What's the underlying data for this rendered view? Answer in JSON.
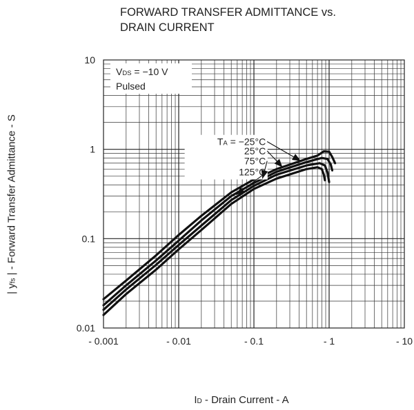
{
  "chart_data": {
    "type": "line",
    "title_line1": "FORWARD TRANSFER ADMITTANCE vs.",
    "title_line2": "DRAIN CURRENT",
    "ylabel": "| yfs | - Forward Transfer Admittance - S",
    "ylabel_parts": {
      "pre": "| y",
      "sub": "fs",
      "post": " | - Forward Transfer Admittance - S"
    },
    "xlabel": "ID - Drain Current - A",
    "xlabel_parts": {
      "pre": "I",
      "sub": "D",
      "post": " - Drain Current - A"
    },
    "x_scale": "log",
    "y_scale": "log",
    "xlim": [
      -0.001,
      -10
    ],
    "ylim": [
      0.01,
      10
    ],
    "x_ticks": [
      {
        "value": -0.001,
        "label": "- 0.001"
      },
      {
        "value": -0.01,
        "label": "- 0.01"
      },
      {
        "value": -0.1,
        "label": "- 0.1"
      },
      {
        "value": -1,
        "label": "- 1"
      },
      {
        "value": -10,
        "label": "- 10"
      }
    ],
    "y_ticks": [
      {
        "value": 0.01,
        "label": "0.01"
      },
      {
        "value": 0.1,
        "label": "0.1"
      },
      {
        "value": 1,
        "label": "1"
      },
      {
        "value": 10,
        "label": "10"
      }
    ],
    "grid": true,
    "conditions": {
      "vds": {
        "pre": "V",
        "sub": "DS",
        "post": " = −10 V"
      },
      "pulsed": "Pulsed"
    },
    "series": [
      {
        "name": "TA = −25°C",
        "label_pre": "T",
        "label_sub": "A",
        "label_post": " = −25°C",
        "label_anchor": [
          -0.15,
          1.22
        ],
        "arrow_to": [
          -0.42,
          0.74
        ],
        "points": [
          [
            -0.001,
            0.021
          ],
          [
            -0.002,
            0.034
          ],
          [
            -0.005,
            0.065
          ],
          [
            -0.01,
            0.11
          ],
          [
            -0.02,
            0.18
          ],
          [
            -0.05,
            0.33
          ],
          [
            -0.1,
            0.46
          ],
          [
            -0.2,
            0.6
          ],
          [
            -0.5,
            0.78
          ],
          [
            -0.7,
            0.85
          ],
          [
            -0.85,
            0.95
          ],
          [
            -1.0,
            0.94
          ],
          [
            -1.1,
            0.82
          ],
          [
            -1.2,
            0.7
          ]
        ]
      },
      {
        "name": "25°C",
        "label_pre": "",
        "label_sub": "",
        "label_post": "25°C",
        "label_anchor": [
          -0.15,
          0.96
        ],
        "arrow_to": [
          -0.24,
          0.63
        ],
        "points": [
          [
            -0.001,
            0.018
          ],
          [
            -0.002,
            0.03
          ],
          [
            -0.005,
            0.057
          ],
          [
            -0.01,
            0.095
          ],
          [
            -0.02,
            0.16
          ],
          [
            -0.05,
            0.3
          ],
          [
            -0.1,
            0.42
          ],
          [
            -0.2,
            0.56
          ],
          [
            -0.5,
            0.72
          ],
          [
            -0.8,
            0.8
          ],
          [
            -0.95,
            0.78
          ],
          [
            -1.05,
            0.68
          ],
          [
            -1.1,
            0.58
          ]
        ]
      },
      {
        "name": "75°C",
        "label_pre": "",
        "label_sub": "",
        "label_post": "75°C",
        "label_anchor": [
          -0.15,
          0.74
        ],
        "arrow_to": [
          -0.13,
          0.47
        ],
        "points": [
          [
            -0.001,
            0.016
          ],
          [
            -0.002,
            0.027
          ],
          [
            -0.005,
            0.051
          ],
          [
            -0.01,
            0.085
          ],
          [
            -0.02,
            0.14
          ],
          [
            -0.05,
            0.27
          ],
          [
            -0.1,
            0.39
          ],
          [
            -0.2,
            0.52
          ],
          [
            -0.5,
            0.66
          ],
          [
            -0.75,
            0.7
          ],
          [
            -0.88,
            0.66
          ],
          [
            -0.95,
            0.55
          ],
          [
            -1.0,
            0.43
          ]
        ]
      },
      {
        "name": "125°C",
        "label_pre": "",
        "label_sub": "",
        "label_post": "125°C",
        "label_anchor": [
          -0.15,
          0.56
        ],
        "arrow_to": [
          -0.058,
          0.31
        ],
        "points": [
          [
            -0.001,
            0.014
          ],
          [
            -0.002,
            0.024
          ],
          [
            -0.005,
            0.045
          ],
          [
            -0.01,
            0.076
          ],
          [
            -0.02,
            0.125
          ],
          [
            -0.05,
            0.245
          ],
          [
            -0.1,
            0.36
          ],
          [
            -0.2,
            0.47
          ],
          [
            -0.5,
            0.6
          ],
          [
            -0.7,
            0.63
          ],
          [
            -0.8,
            0.6
          ],
          [
            -0.85,
            0.52
          ],
          [
            -0.88,
            0.45
          ]
        ]
      }
    ]
  }
}
